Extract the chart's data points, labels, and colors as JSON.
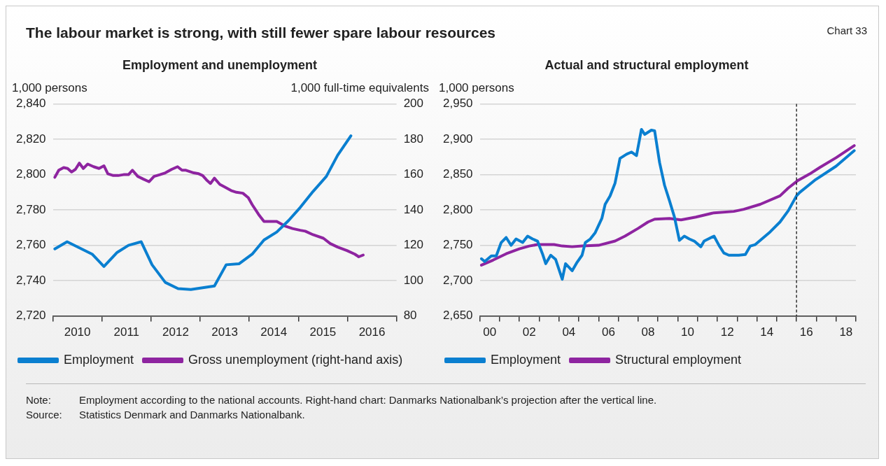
{
  "chart_data": [
    {
      "type": "other",
      "title": "The labour market is strong, with still fewer spare labour resources",
      "annotations": [
        "Chart 33"
      ]
    },
    {
      "type": "line",
      "title": "Employment and unemployment",
      "ylabel": "1,000 persons",
      "y2label": "1,000 full-time equivalents",
      "xlim": [
        2010,
        2017
      ],
      "xticks": [
        {
          "value": 2010,
          "label": null
        },
        {
          "value": 2010.5,
          "label": "2010"
        },
        {
          "value": 2011,
          "label": null
        },
        {
          "value": 2011.5,
          "label": "2011"
        },
        {
          "value": 2012,
          "label": null
        },
        {
          "value": 2012.5,
          "label": "2012"
        },
        {
          "value": 2013,
          "label": null
        },
        {
          "value": 2013.5,
          "label": "2013"
        },
        {
          "value": 2014,
          "label": null
        },
        {
          "value": 2014.5,
          "label": "2014"
        },
        {
          "value": 2015,
          "label": null
        },
        {
          "value": 2015.5,
          "label": "2015"
        },
        {
          "value": 2016,
          "label": null
        },
        {
          "value": 2016.5,
          "label": "2016"
        },
        {
          "value": 2017,
          "label": null
        }
      ],
      "ylim": [
        2720,
        2840
      ],
      "yticks": [
        {
          "value": 2720,
          "label": "2,720"
        },
        {
          "value": 2740,
          "label": "2,740"
        },
        {
          "value": 2760,
          "label": "2,760"
        },
        {
          "value": 2780,
          "label": "2,780"
        },
        {
          "value": 2800,
          "label": "2,800"
        },
        {
          "value": 2820,
          "label": "2,820"
        },
        {
          "value": 2840,
          "label": "2,840"
        }
      ],
      "y2lim": [
        80,
        200
      ],
      "y2ticks": [
        80,
        100,
        120,
        140,
        160,
        180,
        200
      ],
      "grid": "y",
      "legend": "bottom",
      "marker": "none",
      "line_style": "solid",
      "series": [
        {
          "name": "Employment",
          "color": "#0a7fd0",
          "x": [
            2010.04,
            2010.29,
            2010.8,
            2011.04,
            2011.31,
            2011.54,
            2011.8,
            2012.02,
            2012.29,
            2012.55,
            2012.81,
            2013.05,
            2013.29,
            2013.53,
            2013.79,
            2014.06,
            2014.3,
            2014.56,
            2014.8,
            2015.04,
            2015.3,
            2015.57,
            2015.8,
            2016.07
          ],
          "values": [
            2758,
            2762,
            2755,
            2748,
            2756,
            2760,
            2762,
            2749,
            2739,
            2735.5,
            2735,
            2736,
            2737,
            2749,
            2749.5,
            2755,
            2763,
            2767.5,
            2774,
            2781.5,
            2790.5,
            2799,
            2811,
            2822
          ]
        },
        {
          "name": "Gross unemployment (right-hand axis)",
          "color": "#8e24a0",
          "axis": "y2",
          "x": [
            2010.04,
            2010.12,
            2010.22,
            2010.3,
            2010.38,
            2010.46,
            2010.54,
            2010.62,
            2010.71,
            2010.83,
            2010.94,
            2011.04,
            2011.12,
            2011.23,
            2011.33,
            2011.44,
            2011.54,
            2011.62,
            2011.73,
            2011.84,
            2011.96,
            2012.06,
            2012.18,
            2012.29,
            2012.42,
            2012.54,
            2012.63,
            2012.71,
            2012.87,
            2012.97,
            2013.05,
            2013.13,
            2013.21,
            2013.29,
            2013.4,
            2013.5,
            2013.63,
            2013.74,
            2013.87,
            2013.98,
            2014.06,
            2014.19,
            2014.3,
            2014.4,
            2014.56,
            2014.72,
            2014.88,
            2015.04,
            2015.14,
            2015.3,
            2015.51,
            2015.65,
            2015.8,
            2015.99,
            2016.15,
            2016.23,
            2016.32
          ],
          "values": [
            158.5,
            162.5,
            164,
            163.5,
            161.5,
            163,
            166.5,
            163.5,
            166,
            164.5,
            163.5,
            165,
            160.5,
            159.5,
            159.5,
            160,
            160,
            162.5,
            159,
            157.5,
            156,
            159,
            160,
            161,
            163,
            164.5,
            162.5,
            162.5,
            161,
            160.5,
            159.5,
            157,
            155,
            158,
            154.5,
            153,
            151,
            150,
            149.5,
            147,
            143,
            137.5,
            133.5,
            133.5,
            133.5,
            131,
            129.5,
            128.5,
            128,
            126,
            124,
            121,
            119,
            117,
            115,
            113.5,
            114.5
          ]
        }
      ]
    },
    {
      "type": "line",
      "title": "Actual and structural employment",
      "ylabel": "1,000 persons",
      "xlim": [
        "2000",
        "2019"
      ],
      "xticks": [
        {
          "value": "2000",
          "label": null
        },
        {
          "value": "2000-07",
          "label": "00"
        },
        {
          "value": "2001",
          "label": null
        },
        {
          "value": "2002",
          "label": null
        },
        {
          "value": "2002-07",
          "label": "02"
        },
        {
          "value": "2003",
          "label": null
        },
        {
          "value": "2004",
          "label": null
        },
        {
          "value": "2004-07",
          "label": "04"
        },
        {
          "value": "2005",
          "label": null
        },
        {
          "value": "2006",
          "label": null
        },
        {
          "value": "2006-07",
          "label": "06"
        },
        {
          "value": "2007",
          "label": null
        },
        {
          "value": "2008",
          "label": null
        },
        {
          "value": "2008-07",
          "label": "08"
        },
        {
          "value": "2009",
          "label": null
        },
        {
          "value": "2010",
          "label": null
        },
        {
          "value": "2010-07",
          "label": "10"
        },
        {
          "value": "2011",
          "label": null
        },
        {
          "value": "2012",
          "label": null
        },
        {
          "value": "2012-07",
          "label": "12"
        },
        {
          "value": "2013",
          "label": null
        },
        {
          "value": "2014",
          "label": null
        },
        {
          "value": "2014-07",
          "label": "14"
        },
        {
          "value": "2015",
          "label": null
        },
        {
          "value": "2016",
          "label": null
        },
        {
          "value": "2016-07",
          "label": "16"
        },
        {
          "value": "2017",
          "label": null
        },
        {
          "value": "2018",
          "label": null
        },
        {
          "value": "2018-07",
          "label": "18"
        },
        {
          "value": "2019",
          "label": null
        }
      ],
      "ylim": [
        2650,
        2950
      ],
      "yticks": [
        {
          "value": 2650,
          "label": "2,650"
        },
        {
          "value": 2700,
          "label": "2,700"
        },
        {
          "value": 2750,
          "label": "2,750"
        },
        {
          "value": 2800,
          "label": "2,800"
        },
        {
          "value": 2850,
          "label": "2,850"
        },
        {
          "value": 2900,
          "label": "2,900"
        },
        {
          "value": 2950,
          "label": "2,950"
        }
      ],
      "grid": "y",
      "legend": "bottom",
      "marker": "none",
      "line_style": "solid",
      "ref_lines": [
        {
          "axis": "x",
          "value": "2016",
          "color": "#000000",
          "line_style": "dashed"
        }
      ],
      "series": [
        {
          "name": "Employment",
          "color": "#0a7fd0",
          "x": [
            "2000-02",
            "2000-04",
            "2000-08",
            "2000-11",
            "2001-02",
            "2001-05",
            "2001-08",
            "2001-11",
            "2002-03",
            "2002-06",
            "2002-09",
            "2002-12",
            "2003-03",
            "2003-05",
            "2003-08",
            "2003-11",
            "2004-03",
            "2004-05",
            "2004-09",
            "2004-12",
            "2005-03",
            "2005-05",
            "2005-08",
            "2005-11",
            "2006-03",
            "2006-05",
            "2006-08",
            "2006-11",
            "2007-02",
            "2007-06",
            "2007-09",
            "2007-12",
            "2008-03",
            "2008-05",
            "2008-09",
            "2008-11",
            "2009-02",
            "2009-05",
            "2009-08",
            "2009-11",
            "2010-02",
            "2010-05",
            "2010-08",
            "2010-11",
            "2011-03",
            "2011-05",
            "2011-11",
            "2012-02",
            "2012-05",
            "2012-08",
            "2013-02",
            "2013-06",
            "2013-09",
            "2013-12",
            "2014-06",
            "2014-09",
            "2015-03",
            "2015-08",
            "2016-01",
            "2016-03",
            "2016-12",
            "2018-01",
            "2018-12"
          ],
          "values": [
            2731,
            2727,
            2735,
            2735,
            2754,
            2761,
            2750,
            2759,
            2754,
            2763,
            2759,
            2756,
            2738,
            2724,
            2736,
            2730,
            2702,
            2724,
            2714,
            2726,
            2736,
            2754,
            2759,
            2768,
            2788,
            2808,
            2820,
            2838,
            2873,
            2879,
            2882,
            2877,
            2914,
            2907,
            2913,
            2912,
            2867,
            2835,
            2813,
            2790,
            2757,
            2763,
            2759,
            2756,
            2748,
            2756,
            2763,
            2750,
            2739,
            2736,
            2736,
            2737,
            2749,
            2751,
            2763,
            2769,
            2783,
            2799,
            2820,
            2825,
            2842,
            2862,
            2884
          ]
        },
        {
          "name": "Structural employment",
          "color": "#8e24a0",
          "x": [
            "2000-02",
            "2000-09",
            "2001-05",
            "2002-01",
            "2002-07",
            "2002-12",
            "2003-10",
            "2004-03",
            "2004-09",
            "2005-03",
            "2006-01",
            "2006-11",
            "2007-05",
            "2008-01",
            "2008-07",
            "2008-11",
            "2009-08",
            "2010-03",
            "2010-12",
            "2011-11",
            "2012-11",
            "2013-05",
            "2014-03",
            "2015-03",
            "2015-08",
            "2016-02",
            "2016-09",
            "2017-03",
            "2018-01",
            "2018-12"
          ],
          "values": [
            2722,
            2729,
            2738,
            2745,
            2749,
            2751,
            2751,
            2749,
            2748,
            2749,
            2750,
            2756,
            2763,
            2774,
            2783,
            2787,
            2788,
            2786,
            2790,
            2796,
            2798,
            2801,
            2808,
            2820,
            2831,
            2842,
            2851,
            2860,
            2874,
            2891
          ]
        }
      ]
    },
    {
      "type": "other",
      "annotations": [
        "Note:",
        "Employment according to the national accounts. Right-hand chart: Danmarks Nationalbank’s projection after the vertical line.",
        "Source:",
        "Statistics Denmark and Danmarks Nationalbank."
      ]
    }
  ]
}
